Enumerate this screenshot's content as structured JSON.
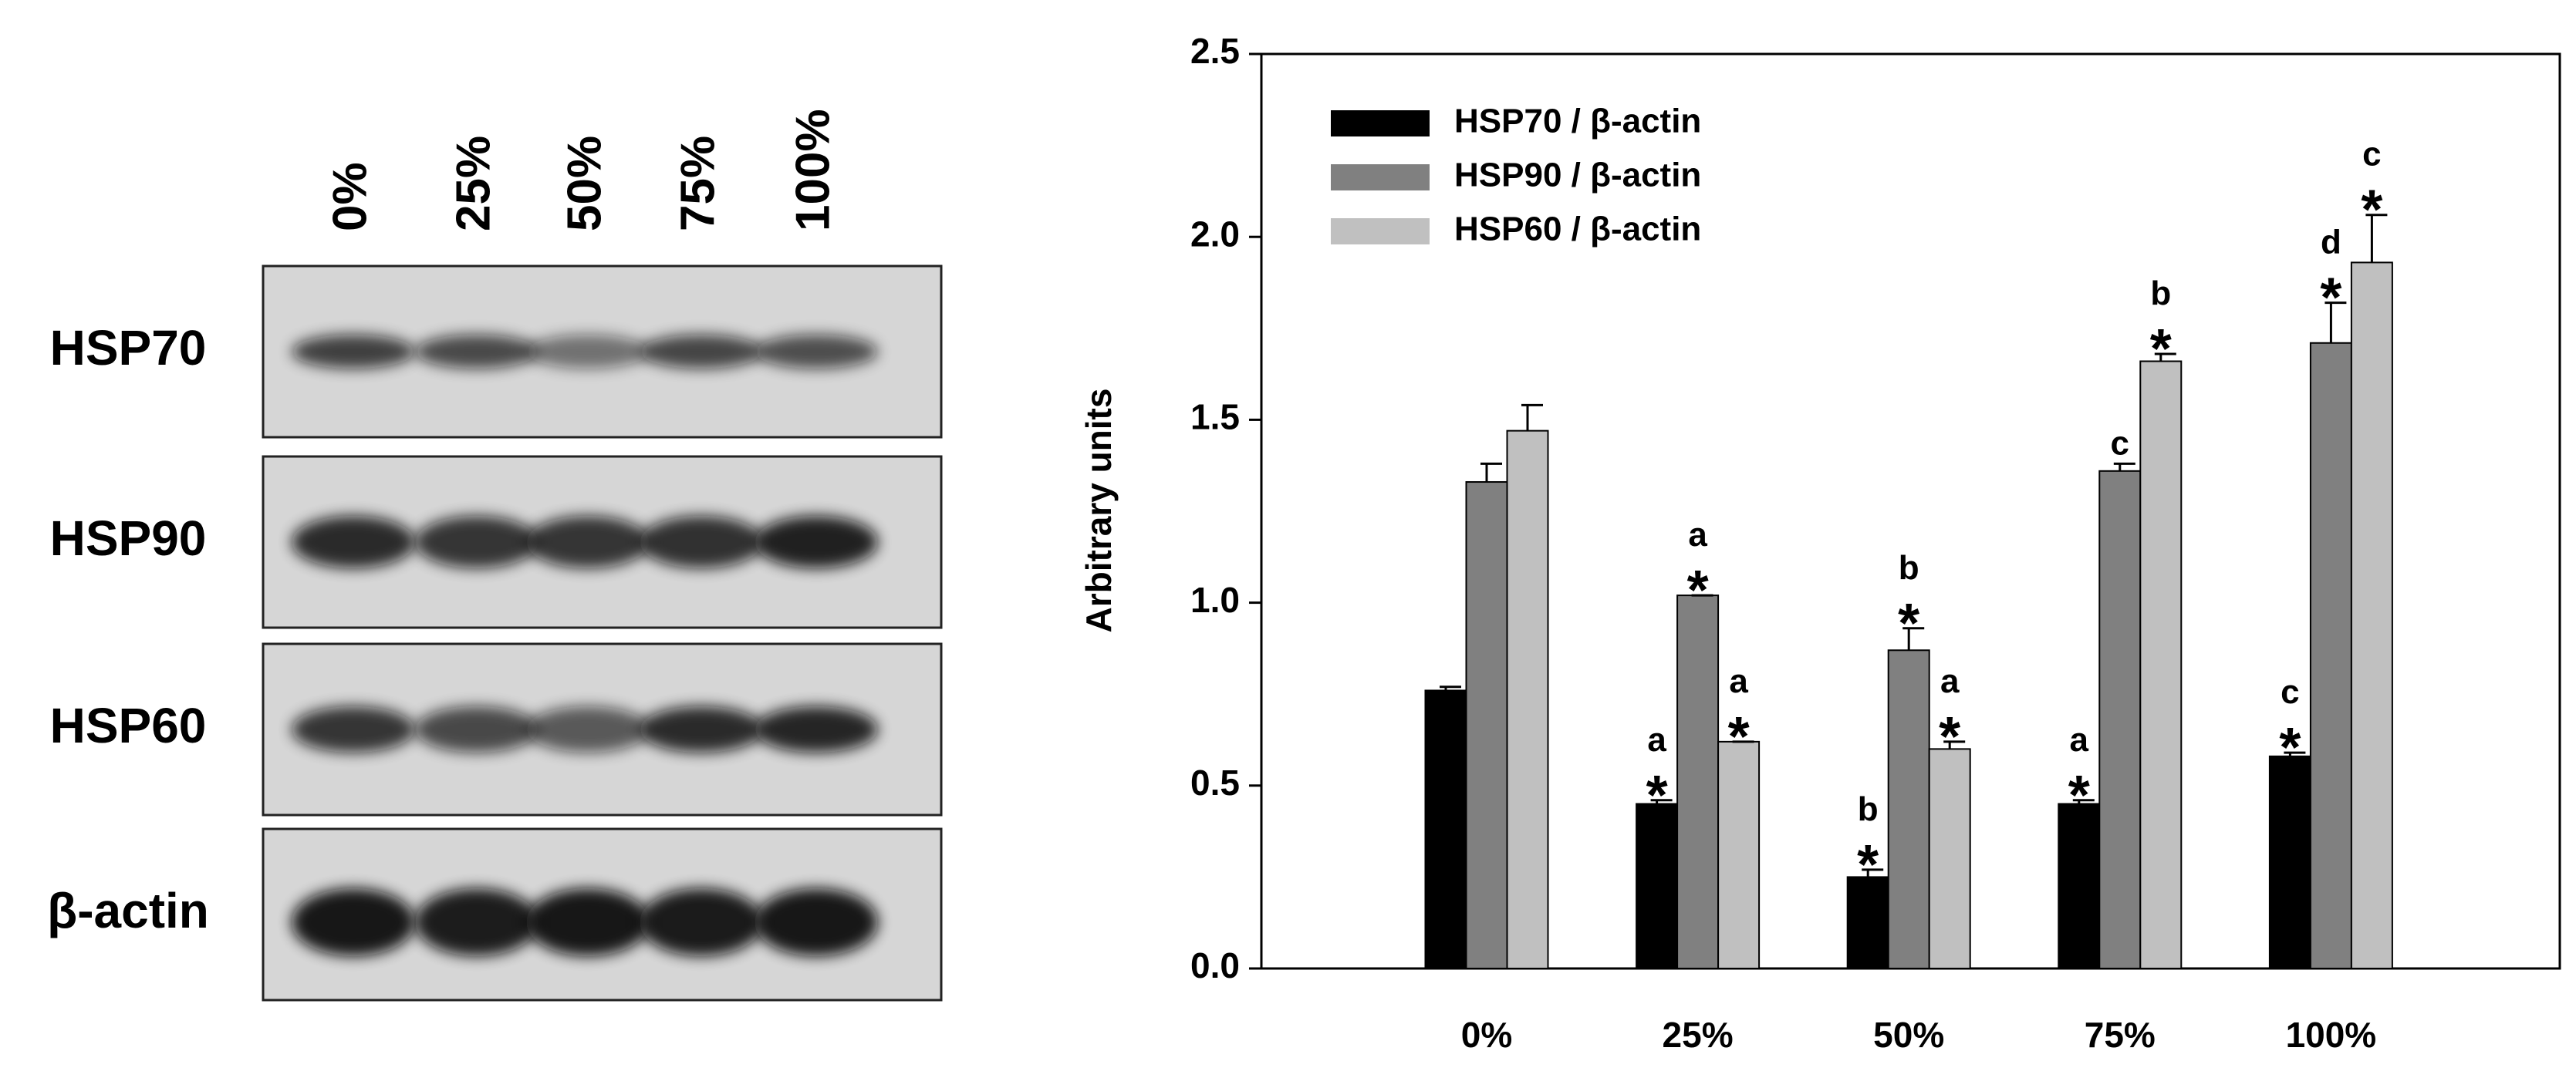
{
  "blot": {
    "lanes": [
      "0%",
      "25%",
      "50%",
      "75%",
      "100%"
    ],
    "rows": [
      "HSP70",
      "HSP90",
      "HSP60",
      "β-actin"
    ]
  },
  "chart_data": {
    "type": "bar",
    "ylabel": "Arbitrary units",
    "categories": [
      "0%",
      "25%",
      "50%",
      "75%",
      "100%"
    ],
    "series": [
      {
        "name": "HSP70 / β-actin",
        "color": "#000000",
        "values": [
          0.76,
          0.45,
          0.25,
          0.45,
          0.58
        ],
        "errors": [
          0.01,
          0.01,
          0.02,
          0.01,
          0.01
        ],
        "letters": [
          null,
          "a",
          "b",
          "a",
          "c"
        ],
        "stars": [
          null,
          "*",
          "*",
          "*",
          "*"
        ]
      },
      {
        "name": "HSP90 / β-actin",
        "color": "#808080",
        "values": [
          1.33,
          1.02,
          0.87,
          1.36,
          1.71
        ],
        "errors": [
          0.05,
          0.0,
          0.06,
          0.02,
          0.11
        ],
        "letters": [
          null,
          "a",
          "b",
          "c",
          "d"
        ],
        "stars": [
          null,
          "*",
          "*",
          null,
          "*"
        ]
      },
      {
        "name": "HSP60 / β-actin",
        "color": "#c0c0c0",
        "values": [
          1.47,
          0.62,
          0.6,
          1.66,
          1.93
        ],
        "errors": [
          0.07,
          0.0,
          0.02,
          0.02,
          0.13
        ],
        "letters": [
          null,
          "a",
          "a",
          "b",
          "c"
        ],
        "stars": [
          null,
          "*",
          "*",
          "*",
          "*"
        ]
      }
    ],
    "ylim": [
      0,
      2.5
    ],
    "yticks": [
      {
        "value": 0,
        "label": "0.0"
      },
      0.5,
      {
        "value": 1,
        "label": "1.0"
      },
      1.5,
      {
        "value": 2,
        "label": "2.0"
      },
      2.5
    ],
    "legend": "upper left"
  }
}
